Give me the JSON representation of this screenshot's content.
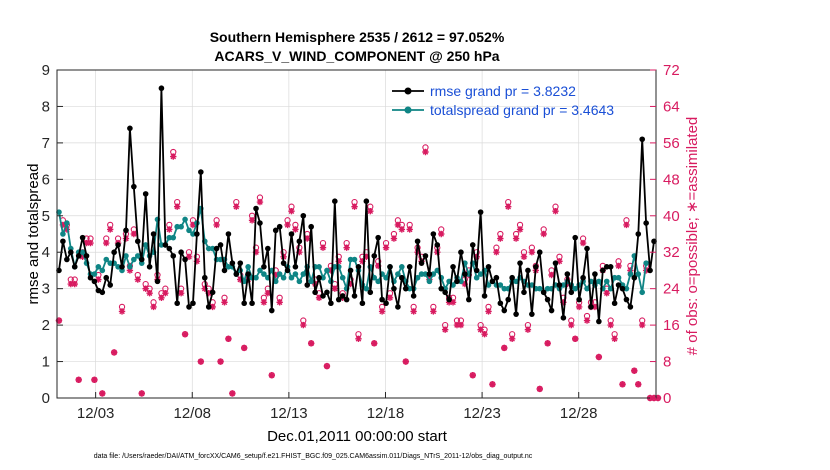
{
  "chart_data": {
    "type": "line",
    "title": "Southern Hemisphere 2535 / 2612 = 97.052%",
    "subtitle": "ACARS_V_WIND_COMPONENT @ 250 hPa",
    "xlabel": "Dec.01,2011 00:00:00 start",
    "ylabel": "rmse and totalspread",
    "y2label": "# of obs: o=possible; ∗=assimilated",
    "xlim": [
      1,
      32
    ],
    "ylim": [
      0,
      9
    ],
    "y2lim": [
      0,
      72
    ],
    "yticks": [
      "0",
      "1",
      "2",
      "3",
      "4",
      "5",
      "6",
      "7",
      "8",
      "9"
    ],
    "y2ticks": [
      "0",
      "8",
      "16",
      "24",
      "32",
      "40",
      "48",
      "56",
      "64",
      "72"
    ],
    "xticks": [
      {
        "x": 3,
        "label": "12/03"
      },
      {
        "x": 8,
        "label": "12/08"
      },
      {
        "x": 13,
        "label": "12/13"
      },
      {
        "x": 18,
        "label": "12/18"
      },
      {
        "x": 23,
        "label": "12/23"
      },
      {
        "x": 28,
        "label": "12/28"
      }
    ],
    "colors": {
      "rmse": "#000000",
      "totalspread": "#0f8585",
      "obs": "#d81b60",
      "legend_text": "#1a4fd6",
      "grid": "#dadada"
    },
    "series": [
      {
        "name": "rmse grand pr = 3.8232",
        "key": "rmse",
        "axis": "left",
        "values": [
          3.5,
          4.3,
          3.8,
          4.0,
          3.6,
          3.9,
          4.4,
          3.9,
          3.3,
          3.2,
          2.95,
          2.9,
          3.3,
          3.1,
          4.0,
          4.2,
          3.6,
          4.6,
          7.4,
          5.8,
          4.3,
          3.8,
          5.6,
          3.6,
          4.5,
          3.2,
          8.5,
          4.2,
          4.1,
          3.9,
          2.6,
          4.0,
          3.8,
          2.5,
          2.6,
          4.5,
          6.2,
          3.3,
          2.5,
          2.9,
          4.1,
          4.2,
          3.5,
          4.5,
          3.7,
          3.4,
          3.7,
          2.6,
          3.4,
          2.6,
          5.2,
          4.8,
          3.6,
          4.1,
          2.4,
          4.6,
          4.7,
          3.7,
          3.5,
          4.5,
          3.6,
          4.3,
          5.0,
          3.1,
          4.7,
          2.9,
          3.3,
          2.8,
          2.9,
          2.6,
          5.4,
          2.7,
          2.8,
          2.7,
          3.5,
          2.8,
          3.6,
          2.6,
          5.4,
          2.9,
          3.9,
          4.4,
          2.7,
          2.6,
          3.6,
          3.0,
          2.5,
          3.3,
          3.0,
          3.6,
          2.8,
          4.3,
          3.7,
          3.9,
          3.4,
          4.5,
          4.2,
          3.0,
          2.9,
          2.7,
          3.6,
          3.2,
          4.0,
          3.4,
          2.7,
          4.2,
          3.5,
          5.1,
          2.8,
          3.6,
          3.2,
          3.3,
          2.6,
          2.4,
          2.7,
          3.3,
          2.3,
          3.7,
          2.9,
          3.5,
          2.3,
          3.6,
          4.0,
          2.9,
          2.7,
          2.4,
          3.7,
          3.1,
          2.2,
          3.4,
          2.9,
          4.4,
          2.7,
          3.3,
          4.1,
          2.5,
          3.4,
          2.1,
          3.5,
          3.6,
          3.6,
          2.6,
          3.1,
          3.0,
          2.7,
          2.5,
          3.3,
          4.5,
          7.1,
          4.8,
          3.5,
          4.3
        ]
      },
      {
        "name": "totalspread grand pr = 3.4643",
        "key": "totalspread",
        "axis": "left",
        "values": [
          5.1,
          4.5,
          4.8,
          4.1,
          3.6,
          4.0,
          4.0,
          3.7,
          3.4,
          3.4,
          3.6,
          3.5,
          3.8,
          3.7,
          3.7,
          3.6,
          3.5,
          3.9,
          3.6,
          3.8,
          3.9,
          3.7,
          4.2,
          3.9,
          4.0,
          4.9,
          4.2,
          4.2,
          4.4,
          4.4,
          4.7,
          4.7,
          4.9,
          4.6,
          4.5,
          4.8,
          5.2,
          4.3,
          4.1,
          4.1,
          3.8,
          3.8,
          3.8,
          3.6,
          3.6,
          3.4,
          3.5,
          3.2,
          3.6,
          3.3,
          3.3,
          3.5,
          3.4,
          3.3,
          3.5,
          3.2,
          3.4,
          3.3,
          3.6,
          3.3,
          3.4,
          3.2,
          3.4,
          3.6,
          3.2,
          3.6,
          3.6,
          3.3,
          3.5,
          3.2,
          3.6,
          3.6,
          3.3,
          3.0,
          3.8,
          3.8,
          3.5,
          3.1,
          3.0,
          3.6,
          3.3,
          3.2,
          3.4,
          3.3,
          3.6,
          3.2,
          3.4,
          3.6,
          3.2,
          3.0,
          3.0,
          3.3,
          3.4,
          3.4,
          3.2,
          3.4,
          3.5,
          3.3,
          3.0,
          3.2,
          3.1,
          3.3,
          3.2,
          3.7,
          3.4,
          3.7,
          3.3,
          3.4,
          3.5,
          3.1,
          3.2,
          3.1,
          3.1,
          3.0,
          3.0,
          3.2,
          3.2,
          3.3,
          3.2,
          3.1,
          3.1,
          3.0,
          3.0,
          2.9,
          3.0,
          3.0,
          3.1,
          3.0,
          3.1,
          3.2,
          3.1,
          3.0,
          3.1,
          3.2,
          3.0,
          3.2,
          3.1,
          3.2,
          3.0,
          3.2,
          3.0,
          3.3,
          3.3,
          3.1,
          3.0,
          3.4,
          3.9,
          3.4,
          2.9,
          3.7
        ]
      },
      {
        "name": "obs possible (o)",
        "key": "possible",
        "axis": "right",
        "values": [
          17,
          39,
          38,
          26,
          26,
          4,
          32,
          35,
          35,
          4,
          27,
          1,
          35,
          38,
          10,
          35,
          20,
          36,
          29,
          37,
          27,
          1,
          25,
          24,
          21,
          27,
          23,
          24,
          38,
          54,
          43,
          24,
          14,
          32,
          39,
          31,
          8,
          25,
          24,
          21,
          39,
          8,
          22,
          13,
          1,
          43,
          27,
          11,
          27,
          40,
          33,
          44,
          22,
          24,
          5,
          28,
          22,
          32,
          39,
          42,
          38,
          33,
          17,
          36,
          12,
          26,
          23,
          34,
          7,
          29,
          25,
          31,
          23,
          34,
          26,
          43,
          14,
          31,
          32,
          42,
          12,
          30,
          20,
          34,
          23,
          36,
          39,
          38,
          8,
          38,
          20,
          33,
          31,
          55,
          27,
          20,
          33,
          37,
          16,
          22,
          22,
          17,
          17,
          26,
          28,
          5,
          32,
          16,
          15,
          20,
          3,
          33,
          36,
          11,
          43,
          14,
          36,
          38,
          32,
          16,
          33,
          29,
          2,
          37,
          12,
          28,
          42,
          31,
          22,
          26,
          17,
          13,
          21,
          35,
          18,
          21,
          21,
          9,
          29,
          24,
          17,
          14,
          30,
          3,
          39,
          29,
          6,
          3,
          17,
          29,
          0,
          0,
          0
        ]
      },
      {
        "name": "obs assimilated (∗)",
        "key": "assimilated",
        "axis": "right",
        "values": [
          17,
          38,
          37,
          25,
          25,
          4,
          31,
          34,
          34,
          4,
          26,
          1,
          34,
          37,
          10,
          34,
          19,
          35,
          28,
          36,
          26,
          1,
          24,
          23,
          20,
          26,
          22,
          23,
          37,
          53,
          42,
          23,
          14,
          31,
          38,
          30,
          8,
          24,
          23,
          20,
          38,
          8,
          21,
          13,
          1,
          42,
          26,
          11,
          26,
          39,
          32,
          43,
          21,
          23,
          5,
          27,
          21,
          31,
          38,
          41,
          37,
          32,
          16,
          35,
          12,
          25,
          22,
          33,
          7,
          28,
          24,
          30,
          22,
          33,
          25,
          42,
          13,
          30,
          31,
          41,
          12,
          29,
          19,
          33,
          22,
          35,
          38,
          37,
          8,
          37,
          19,
          32,
          30,
          54,
          26,
          19,
          32,
          36,
          15,
          21,
          21,
          16,
          16,
          25,
          27,
          5,
          31,
          15,
          14,
          19,
          3,
          32,
          35,
          11,
          42,
          13,
          35,
          37,
          31,
          15,
          32,
          28,
          2,
          36,
          12,
          27,
          41,
          30,
          21,
          25,
          16,
          13,
          20,
          34,
          17,
          20,
          20,
          9,
          28,
          23,
          16,
          13,
          29,
          3,
          38,
          28,
          6,
          3,
          16,
          28,
          0,
          0,
          0
        ]
      }
    ]
  },
  "footer": {
    "datafile": "data file: /Users/raeder/DAI/ATM_forcXX/CAM6_setup/f.e21.FHIST_BGC.f09_025.CAM6assim.011/Diags_NTrS_2011-12/obs_diag_output.nc"
  }
}
